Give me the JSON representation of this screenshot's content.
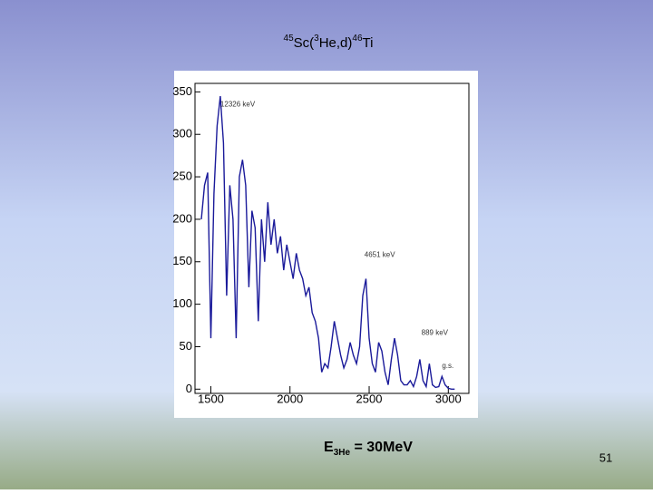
{
  "chart_data": {
    "type": "line",
    "title_parts": [
      "45",
      "Sc(",
      "3",
      "He,d)",
      "46",
      "Ti"
    ],
    "caption_parts": [
      "E",
      "3He",
      " = 30MeV"
    ],
    "page_number": "51",
    "color": "#1a1a9a",
    "x": [
      1440,
      1460,
      1480,
      1500,
      1520,
      1540,
      1560,
      1580,
      1600,
      1620,
      1640,
      1660,
      1680,
      1700,
      1720,
      1740,
      1760,
      1780,
      1800,
      1820,
      1840,
      1860,
      1880,
      1900,
      1920,
      1940,
      1960,
      1980,
      2000,
      2020,
      2040,
      2060,
      2080,
      2100,
      2120,
      2140,
      2160,
      2180,
      2200,
      2220,
      2240,
      2260,
      2280,
      2300,
      2320,
      2340,
      2360,
      2380,
      2400,
      2420,
      2440,
      2460,
      2480,
      2500,
      2520,
      2540,
      2560,
      2580,
      2600,
      2620,
      2640,
      2660,
      2680,
      2700,
      2720,
      2740,
      2760,
      2780,
      2800,
      2820,
      2840,
      2860,
      2880,
      2900,
      2920,
      2940,
      2960,
      2980,
      3000,
      3020,
      3040
    ],
    "values": [
      200,
      240,
      255,
      60,
      230,
      310,
      345,
      290,
      110,
      240,
      200,
      60,
      250,
      270,
      240,
      120,
      210,
      190,
      80,
      200,
      150,
      220,
      170,
      200,
      160,
      180,
      140,
      170,
      150,
      130,
      160,
      140,
      130,
      110,
      120,
      90,
      80,
      60,
      20,
      30,
      25,
      50,
      80,
      60,
      40,
      25,
      35,
      55,
      40,
      30,
      50,
      110,
      130,
      60,
      30,
      20,
      55,
      45,
      20,
      5,
      35,
      60,
      40,
      10,
      5,
      5,
      10,
      3,
      15,
      35,
      10,
      3,
      30,
      5,
      2,
      3,
      15,
      5,
      1,
      0,
      0
    ],
    "annotations": [
      {
        "text": "12326 keV",
        "x": 1560,
        "y": 335
      },
      {
        "text": "4651 keV",
        "x": 2470,
        "y": 158
      },
      {
        "text": "889 keV",
        "x": 2830,
        "y": 66
      },
      {
        "text": "g.s.",
        "x": 2960,
        "y": 27
      }
    ],
    "xlim": [
      1400,
      3130
    ],
    "ylim": [
      -5,
      360
    ],
    "xticks": [
      1500,
      2000,
      2500,
      3000
    ],
    "yticks": [
      0,
      50,
      100,
      150,
      200,
      250,
      300,
      350
    ]
  }
}
